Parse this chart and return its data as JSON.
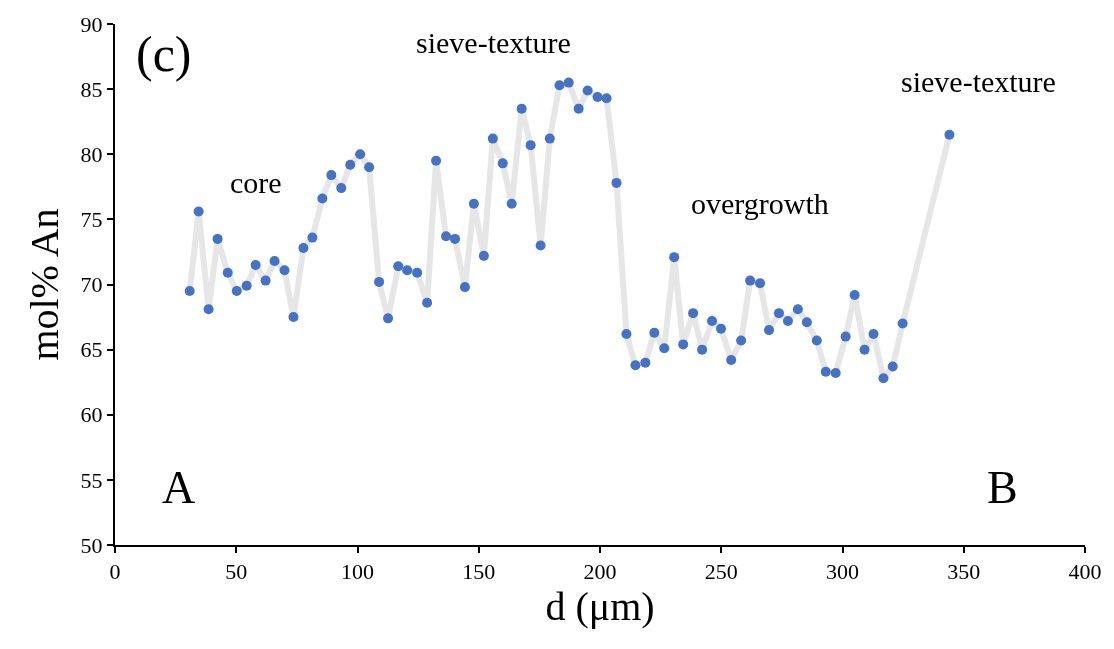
{
  "chart_data": {
    "type": "line",
    "xlabel": "d (μm)",
    "ylabel": "mol% An",
    "x": [
      30.8,
      34.5,
      38.6,
      42.3,
      46.5,
      50.2,
      54.3,
      58.0,
      62.1,
      65.8,
      69.9,
      73.6,
      77.7,
      81.4,
      85.5,
      89.2,
      93.3,
      97.0,
      101.1,
      104.8,
      108.9,
      112.6,
      116.8,
      120.5,
      124.6,
      128.7,
      132.4,
      136.5,
      140.2,
      144.3,
      148.0,
      152.1,
      155.8,
      159.9,
      163.6,
      167.7,
      171.4,
      175.5,
      179.3,
      183.3,
      187.1,
      191.2,
      194.9,
      199.0,
      202.7,
      206.8,
      210.9,
      214.6,
      218.7,
      222.4,
      226.5,
      230.6,
      234.3,
      238.4,
      242.1,
      246.2,
      249.9,
      254.1,
      258.2,
      261.9,
      266.0,
      269.7,
      273.8,
      277.5,
      281.6,
      285.3,
      289.4,
      293.1,
      297.2,
      301.3,
      305.0,
      309.1,
      312.8,
      316.9,
      320.7,
      324.8,
      344.1
    ],
    "series": [
      {
        "color": "#e6e6e6",
        "values": [
          69.5,
          75.6,
          68.1,
          73.5,
          70.9,
          69.5,
          69.9,
          71.5,
          70.3,
          71.8,
          71.1,
          67.5,
          72.8,
          73.6,
          76.6,
          78.4,
          77.4,
          79.2,
          80.0,
          79.0,
          70.2,
          67.4,
          71.4,
          71.1,
          70.9,
          68.6,
          79.5,
          73.7,
          73.5,
          69.8,
          76.2,
          72.2,
          81.2,
          79.3,
          76.2,
          83.5,
          80.7,
          73.0,
          81.2,
          85.3,
          85.5,
          83.5,
          84.9,
          84.4,
          84.3,
          77.8,
          66.2,
          63.8,
          64.0,
          66.3,
          65.1,
          72.1,
          65.4,
          67.8,
          65.0,
          67.2,
          66.6,
          64.2,
          65.7,
          70.3,
          70.1,
          66.5,
          67.8,
          67.2,
          68.1,
          67.1,
          65.7,
          63.3,
          63.2,
          66.0,
          69.2,
          65.0,
          66.2,
          62.8,
          63.7,
          67.0,
          81.5
        ]
      },
      {
        "type": "scatter",
        "color": "#4472c4",
        "values": [
          69.5,
          75.6,
          68.1,
          73.5,
          70.9,
          69.5,
          69.9,
          71.5,
          70.3,
          71.8,
          71.1,
          67.5,
          72.8,
          73.6,
          76.6,
          78.4,
          77.4,
          79.2,
          80.0,
          79.0,
          70.2,
          67.4,
          71.4,
          71.1,
          70.9,
          68.6,
          79.5,
          73.7,
          73.5,
          69.8,
          76.2,
          72.2,
          81.2,
          79.3,
          76.2,
          83.5,
          80.7,
          73.0,
          81.2,
          85.3,
          85.5,
          83.5,
          84.9,
          84.4,
          84.3,
          77.8,
          66.2,
          63.8,
          64.0,
          66.3,
          65.1,
          72.1,
          65.4,
          67.8,
          65.0,
          67.2,
          66.6,
          64.2,
          65.7,
          70.3,
          70.1,
          66.5,
          67.8,
          67.2,
          68.1,
          67.1,
          65.7,
          63.3,
          63.2,
          66.0,
          69.2,
          65.0,
          66.2,
          62.8,
          63.7,
          67.0,
          81.5
        ]
      }
    ],
    "xlim": [
      0,
      400
    ],
    "xticks": [
      0,
      50,
      100,
      150,
      200,
      250,
      300,
      350,
      400
    ],
    "ylim": [
      50,
      90
    ],
    "yticks": [
      50,
      55,
      60,
      65,
      70,
      75,
      80,
      85,
      90
    ],
    "annotations": [
      "(c)",
      "core",
      "sieve-texture",
      "overgrowth",
      "sieve-texture",
      "A",
      "B"
    ]
  }
}
